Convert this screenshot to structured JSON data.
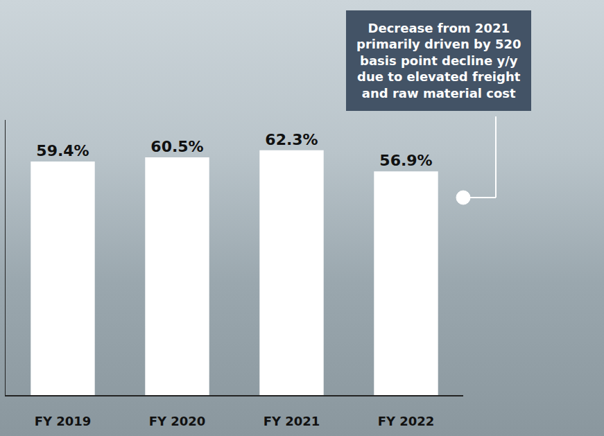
{
  "chart_data": {
    "type": "bar",
    "categories": [
      "FY 2019",
      "FY 2020",
      "FY 2021",
      "FY 2022"
    ],
    "values": [
      59.4,
      60.5,
      62.3,
      56.9
    ],
    "value_labels": [
      "59.4%",
      "60.5%",
      "62.3%",
      "56.9%"
    ],
    "data_labels": true,
    "color": "#ffffff",
    "ylim": [
      0,
      70
    ],
    "grid": false,
    "tick_labels": "x",
    "annotations": [
      "Decrease from 2021 primarily driven by 520 basis point decline y/y due to elevated freight and raw material cost"
    ]
  }
}
